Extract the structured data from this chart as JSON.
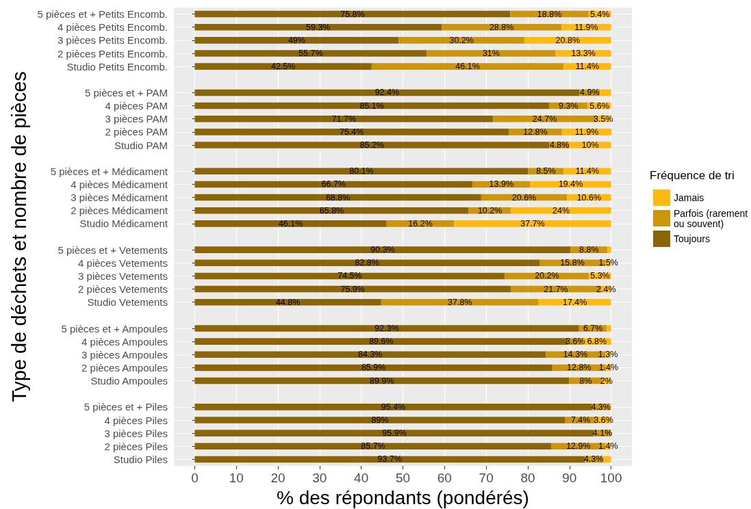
{
  "chart_data": {
    "type": "bar",
    "orientation": "horizontal",
    "stacked": true,
    "categories": [
      "5 pièces et + Petits Encomb.",
      "4 pièces Petits Encomb.",
      "3 pièces Petits Encomb.",
      "2 pièces Petits Encomb.",
      "Studio Petits Encomb.",
      null,
      "5 pièces et + PAM",
      "4 pièces PAM",
      "3 pièces PAM",
      "2 pièces PAM",
      "Studio PAM",
      null,
      "5 pièces et + Médicament",
      "4 pièces Médicament",
      "3 pièces Médicament",
      "2 pièces Médicament",
      "Studio Médicament",
      null,
      "5 pièces et + Vetements",
      "4 pièces Vetements",
      "3 pièces Vetements",
      "2 pièces Vetements",
      "Studio Vetements",
      null,
      "5 pièces et + Ampoules",
      "4 pièces Ampoules",
      "3 pièces Ampoules",
      "2 pièces Ampoules",
      "Studio Ampoules",
      null,
      "5 pièces et + Piles",
      "4 pièces Piles",
      "3 pièces Piles",
      "2 pièces Piles",
      "Studio Piles"
    ],
    "series": [
      {
        "name": "Toujours",
        "color": "#8b6508",
        "values": [
          75.8,
          59.3,
          49,
          55.7,
          42.5,
          null,
          92.4,
          85.1,
          71.7,
          75.4,
          85.2,
          null,
          80.1,
          66.7,
          68.8,
          65.8,
          46.1,
          null,
          90.3,
          82.8,
          74.5,
          75.9,
          44.8,
          null,
          92.3,
          89.6,
          84.3,
          85.9,
          89.9,
          null,
          95.4,
          89,
          95.9,
          85.7,
          93.7
        ],
        "value_labels": [
          "75.8%",
          "59.3%",
          "49%",
          "55.7%",
          "42.5%",
          null,
          "92.4%",
          "85.1%",
          "71.7%",
          "75.4%",
          "85.2%",
          null,
          "80.1%",
          "66.7%",
          "68.8%",
          "65.8%",
          "46.1%",
          null,
          "90.3%",
          "82.8%",
          "74.5%",
          "75.9%",
          "44.8%",
          null,
          "92.3%",
          "89.6%",
          "84.3%",
          "85.9%",
          "89.9%",
          null,
          "95.4%",
          "89%",
          "95.9%",
          "85.7%",
          "93.7%"
        ]
      },
      {
        "name": "Parfois (rarement ou souvent)",
        "color": "#cd950c",
        "values": [
          18.8,
          28.8,
          30.2,
          31,
          46.1,
          null,
          4.9,
          9.3,
          24.7,
          12.8,
          4.8,
          null,
          8.5,
          13.9,
          20.6,
          10.2,
          16.2,
          null,
          8.8,
          15.8,
          20.2,
          21.7,
          37.8,
          null,
          6.7,
          3.6,
          14.3,
          12.8,
          8,
          null,
          4.3,
          7.4,
          4.1,
          12.9,
          4.3
        ],
        "value_labels": [
          "18.8%",
          "28.8%",
          "30.2%",
          "31%",
          "46.1%",
          null,
          "4.9%",
          "9.3%",
          "24.7%",
          "12.8%",
          "4.8%",
          null,
          "8.5%",
          "13.9%",
          "20.6%",
          "10.2%",
          "16.2%",
          null,
          "8.8%",
          "15.8%",
          "20.2%",
          "21.7%",
          "37.8%",
          null,
          "6.7%",
          "3.6%",
          "14.3%",
          "12.8%",
          "8%",
          null,
          "4.3%",
          "7.4%",
          "4.1%",
          "12.9%",
          "4.3%"
        ]
      },
      {
        "name": "Jamais",
        "color": "#ffb90f",
        "values": [
          5.4,
          11.9,
          20.8,
          13.3,
          11.4,
          null,
          2.7,
          5.6,
          3.5,
          11.9,
          10,
          null,
          11.4,
          19.4,
          10.6,
          24,
          37.7,
          null,
          0.9,
          1.5,
          5.3,
          2.4,
          17.4,
          null,
          1,
          6.8,
          1.3,
          1.4,
          2,
          null,
          0.3,
          3.6,
          null,
          1.4,
          2
        ],
        "value_labels": [
          "5.4%",
          "11.9%",
          "20.8%",
          "13.3%",
          "11.4%",
          null,
          null,
          "5.6%",
          "3.5%",
          "11.9%",
          "10%",
          null,
          "11.4%",
          "19.4%",
          "10.6%",
          "24%",
          "37.7%",
          null,
          null,
          "1.5%",
          "5.3%",
          "2.4%",
          "17.4%",
          null,
          null,
          "6.8%",
          "1.3%",
          "1.4%",
          "2%",
          null,
          null,
          "3.6%",
          null,
          "1.4%",
          null
        ]
      }
    ],
    "xlabel": "% des répondants (pondérés)",
    "ylabel": "Type de déchets et nombre de pièces",
    "legend_title": "Fréquence de tri",
    "legend": "right",
    "xlim": [
      -5,
      105
    ],
    "xticks": [
      0,
      10,
      20,
      30,
      40,
      50,
      60,
      70,
      80,
      90,
      100
    ],
    "grid": true
  }
}
